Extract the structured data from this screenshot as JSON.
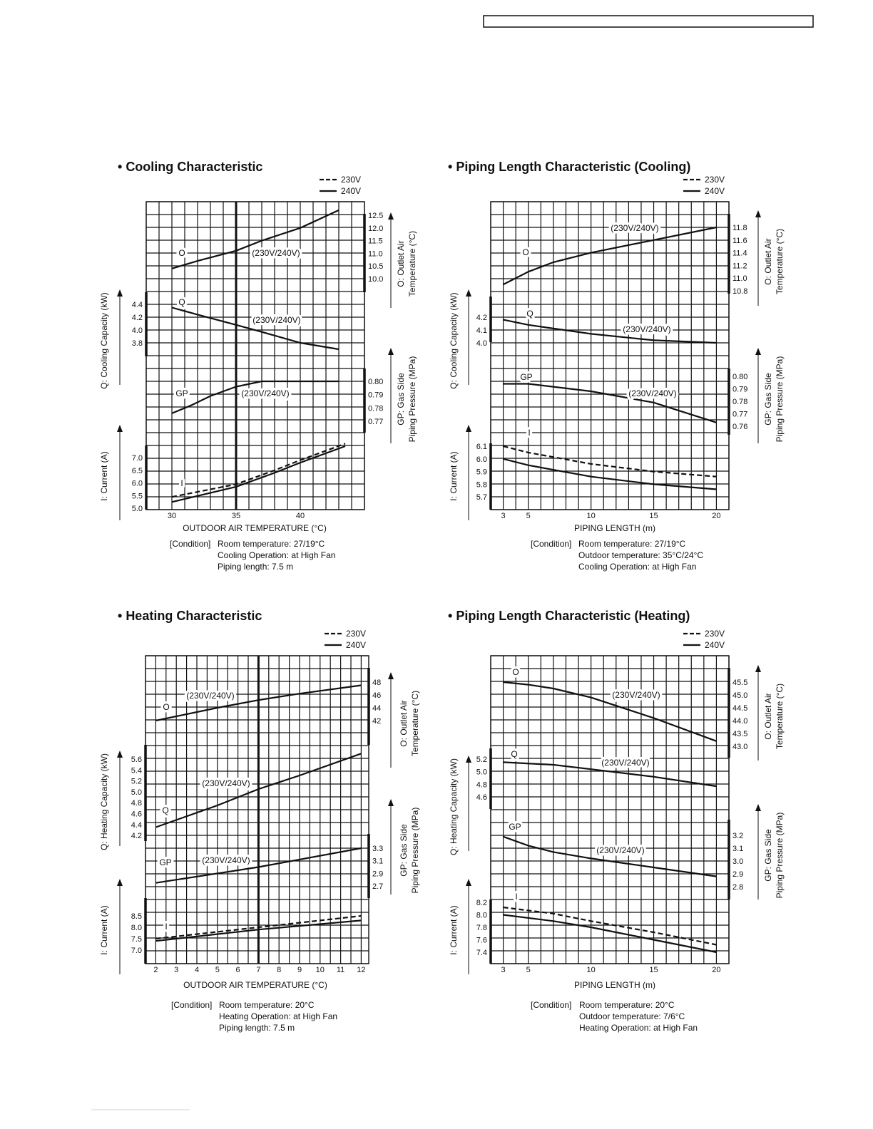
{
  "chart_data": [
    {
      "type": "line",
      "title": "Cooling Characteristic",
      "legend": [
        "230V",
        "240V"
      ],
      "xlabel": "OUTDOOR AIR TEMPERATURE (°C)",
      "xticks": [
        "30",
        "35",
        "40"
      ],
      "xlim": [
        28,
        45
      ],
      "reference_x": 35,
      "condition_label": "[Condition]",
      "conditions": [
        "Room temperature: 27/19°C",
        "Cooling Operation: at High Fan",
        "Piping length: 7.5 m"
      ],
      "panels": [
        {
          "letter": "O",
          "tag": "(230V/240V)",
          "side": "right",
          "axis_title": [
            "O: Outlet Air",
            "Temperature (°C)"
          ],
          "ticks": [
            "12.5",
            "12.0",
            "11.5",
            "11.0",
            "10.5",
            "10.0"
          ],
          "series": [
            {
              "name": "230V/240V",
              "style": "solid",
              "points": [
                [
                  30,
                  10.4
                ],
                [
                  32,
                  10.7
                ],
                [
                  35,
                  11.1
                ],
                [
                  37,
                  11.5
                ],
                [
                  40,
                  12.0
                ],
                [
                  43,
                  12.7
                ]
              ]
            }
          ]
        },
        {
          "letter": "Q",
          "tag": "(230V/240V)",
          "side": "left",
          "axis_title": [
            "Q: Cooling Capacity (kW)"
          ],
          "ticks": [
            "4.4",
            "4.2",
            "4.0",
            "3.8"
          ],
          "series": [
            {
              "name": "230V/240V",
              "style": "solid",
              "points": [
                [
                  30,
                  4.35
                ],
                [
                  32,
                  4.24
                ],
                [
                  35,
                  4.08
                ],
                [
                  37,
                  3.97
                ],
                [
                  40,
                  3.8
                ],
                [
                  43,
                  3.7
                ]
              ]
            }
          ]
        },
        {
          "letter": "GP",
          "tag": "(230V/240V)",
          "side": "right",
          "axis_title": [
            "GP: Gas Side",
            "Piping Pressure (MPa)"
          ],
          "ticks": [
            "0.80",
            "0.79",
            "0.78",
            "0.77"
          ],
          "series": [
            {
              "name": "230V/240V",
              "style": "solid",
              "points": [
                [
                  30,
                  0.776
                ],
                [
                  31.5,
                  0.782
                ],
                [
                  33,
                  0.789
                ],
                [
                  35,
                  0.796
                ],
                [
                  37,
                  0.8
                ],
                [
                  43,
                  0.8
                ]
              ]
            }
          ]
        },
        {
          "letter": "I",
          "tag": "",
          "side": "left",
          "axis_title": [
            "I: Current (A)"
          ],
          "ticks": [
            "7.0",
            "6.5",
            "6.0",
            "5.5",
            "5.0"
          ],
          "series": [
            {
              "name": "230V",
              "style": "dashed",
              "points": [
                [
                  30,
                  5.45
                ],
                [
                  35,
                  5.95
                ],
                [
                  38,
                  6.5
                ],
                [
                  40,
                  6.9
                ],
                [
                  43.5,
                  7.55
                ]
              ]
            },
            {
              "name": "240V",
              "style": "solid",
              "points": [
                [
                  30,
                  5.25
                ],
                [
                  35,
                  5.85
                ],
                [
                  38,
                  6.4
                ],
                [
                  40,
                  6.8
                ],
                [
                  43.5,
                  7.45
                ]
              ]
            }
          ]
        }
      ]
    },
    {
      "type": "line",
      "title": "Piping Length Characteristic (Cooling)",
      "legend": [
        "230V",
        "240V"
      ],
      "xlabel": "PIPING LENGTH (m)",
      "xticks": [
        "3",
        "5",
        "10",
        "15",
        "20"
      ],
      "xlim": [
        2,
        21
      ],
      "reference_x": null,
      "condition_label": "[Condition]",
      "conditions": [
        "Room temperature: 27/19°C",
        "Outdoor temperature: 35°C/24°C",
        "Cooling Operation: at High Fan"
      ],
      "panels": [
        {
          "letter": "O",
          "tag": "(230V/240V)",
          "side": "right",
          "axis_title": [
            "O: Outlet Air",
            "Temperature (°C)"
          ],
          "ticks": [
            "11.8",
            "11.6",
            "11.4",
            "11.2",
            "11.0",
            "10.8"
          ],
          "series": [
            {
              "name": "230V/240V",
              "style": "solid",
              "points": [
                [
                  3,
                  10.9
                ],
                [
                  5,
                  11.1
                ],
                [
                  7,
                  11.25
                ],
                [
                  10,
                  11.4
                ],
                [
                  15,
                  11.6
                ],
                [
                  20,
                  11.8
                ]
              ]
            }
          ]
        },
        {
          "letter": "Q",
          "tag": "(230V/240V)",
          "side": "left",
          "axis_title": [
            "Q: Cooling Capacity (kW)"
          ],
          "ticks": [
            "4.2",
            "4.1",
            "4.0"
          ],
          "series": [
            {
              "name": "230V/240V",
              "style": "solid",
              "points": [
                [
                  3,
                  4.18
                ],
                [
                  5,
                  4.14
                ],
                [
                  10,
                  4.07
                ],
                [
                  15,
                  4.02
                ],
                [
                  20,
                  4.0
                ]
              ]
            }
          ]
        },
        {
          "letter": "GP",
          "tag": "(230V/240V)",
          "side": "right",
          "axis_title": [
            "GP: Gas Side",
            "Piping Pressure (MPa)"
          ],
          "ticks": [
            "0.80",
            "0.79",
            "0.78",
            "0.77",
            "0.76"
          ],
          "series": [
            {
              "name": "230V/240V",
              "style": "solid",
              "points": [
                [
                  3,
                  0.794
                ],
                [
                  5,
                  0.794
                ],
                [
                  10,
                  0.788
                ],
                [
                  15,
                  0.779
                ],
                [
                  20,
                  0.763
                ]
              ]
            }
          ]
        },
        {
          "letter": "I",
          "tag": "",
          "side": "left",
          "axis_title": [
            "I: Current (A)"
          ],
          "ticks": [
            "6.1",
            "6.0",
            "5.9",
            "5.8",
            "5.7"
          ],
          "series": [
            {
              "name": "230V",
              "style": "dashed",
              "points": [
                [
                  3,
                  6.1
                ],
                [
                  5,
                  6.05
                ],
                [
                  10,
                  5.96
                ],
                [
                  15,
                  5.9
                ],
                [
                  20,
                  5.86
                ]
              ]
            },
            {
              "name": "240V",
              "style": "solid",
              "points": [
                [
                  3,
                  6.0
                ],
                [
                  5,
                  5.95
                ],
                [
                  10,
                  5.86
                ],
                [
                  15,
                  5.8
                ],
                [
                  20,
                  5.76
                ]
              ]
            }
          ]
        }
      ]
    },
    {
      "type": "line",
      "title": "Heating Characteristic",
      "legend": [
        "230V",
        "240V"
      ],
      "xlabel": "OUTDOOR AIR TEMPERATURE (°C)",
      "xticks": [
        "2",
        "3",
        "4",
        "5",
        "6",
        "7",
        "8",
        "9",
        "10",
        "11",
        "12"
      ],
      "xlim": [
        1.5,
        12.4
      ],
      "reference_x": 7,
      "condition_label": "[Condition]",
      "conditions": [
        "Room temperature: 20°C",
        "Heating Operation: at High Fan",
        "Piping length: 7.5 m"
      ],
      "panels": [
        {
          "letter": "O",
          "tag": "(230V/240V)",
          "side": "right",
          "axis_title": [
            "O: Outlet Air",
            "Temperature (°C)"
          ],
          "ticks": [
            "48",
            "46",
            "44",
            "42"
          ],
          "series": [
            {
              "name": "230V/240V",
              "style": "solid",
              "points": [
                [
                  2,
                  42
                ],
                [
                  5,
                  44
                ],
                [
                  7,
                  45.2
                ],
                [
                  9,
                  46.2
                ],
                [
                  12,
                  47.5
                ]
              ]
            }
          ]
        },
        {
          "letter": "Q",
          "tag": "(230V/240V)",
          "side": "left",
          "axis_title": [
            "Q: Heating Capacity (kW)"
          ],
          "ticks": [
            "5.6",
            "5.4",
            "5.2",
            "5.0",
            "4.8",
            "4.6",
            "4.4",
            "4.2"
          ],
          "series": [
            {
              "name": "230V/240V",
              "style": "solid",
              "points": [
                [
                  2,
                  4.35
                ],
                [
                  5,
                  4.75
                ],
                [
                  7,
                  5.05
                ],
                [
                  9,
                  5.3
                ],
                [
                  12,
                  5.7
                ]
              ]
            }
          ]
        },
        {
          "letter": "GP",
          "tag": "(230V/240V)",
          "side": "right",
          "axis_title": [
            "GP: Gas Side",
            "Piping Pressure (MPa)"
          ],
          "ticks": [
            "3.3",
            "3.1",
            "2.9",
            "2.7"
          ],
          "series": [
            {
              "name": "230V/240V",
              "style": "solid",
              "points": [
                [
                  2,
                  2.75
                ],
                [
                  5,
                  2.9
                ],
                [
                  7,
                  3.0
                ],
                [
                  9,
                  3.12
                ],
                [
                  12,
                  3.3
                ]
              ]
            }
          ]
        },
        {
          "letter": "I",
          "tag": "",
          "side": "left",
          "axis_title": [
            "I: Current (A)"
          ],
          "ticks": [
            "8.5",
            "8.0",
            "7.5",
            "7.0"
          ],
          "series": [
            {
              "name": "230V",
              "style": "dashed",
              "points": [
                [
                  2,
                  7.5
                ],
                [
                  7,
                  8.0
                ],
                [
                  12,
                  8.5
                ]
              ]
            },
            {
              "name": "240V",
              "style": "solid",
              "points": [
                [
                  2,
                  7.4
                ],
                [
                  7,
                  7.9
                ],
                [
                  12,
                  8.3
                ]
              ]
            }
          ]
        }
      ]
    },
    {
      "type": "line",
      "title": "Piping Length Characteristic (Heating)",
      "legend": [
        "230V",
        "240V"
      ],
      "xlabel": "PIPING LENGTH (m)",
      "xticks": [
        "3",
        "5",
        "10",
        "15",
        "20"
      ],
      "xlim": [
        2,
        21
      ],
      "reference_x": null,
      "condition_label": "[Condition]",
      "conditions": [
        "Room temperature: 20°C",
        "Outdoor temperature: 7/6°C",
        "Heating Operation: at High Fan"
      ],
      "panels": [
        {
          "letter": "O",
          "tag": "(230V/240V)",
          "side": "right",
          "axis_title": [
            "O: Outlet Air",
            "Temperature (°C)"
          ],
          "ticks": [
            "45.5",
            "45.0",
            "44.5",
            "44.0",
            "43.5",
            "43.0"
          ],
          "series": [
            {
              "name": "230V/240V",
              "style": "solid",
              "points": [
                [
                  3,
                  45.5
                ],
                [
                  5,
                  45.4
                ],
                [
                  7,
                  45.25
                ],
                [
                  10,
                  44.9
                ],
                [
                  15,
                  44.1
                ],
                [
                  20,
                  43.2
                ]
              ]
            }
          ]
        },
        {
          "letter": "Q",
          "tag": "(230V/240V)",
          "side": "left",
          "axis_title": [
            "Q: Heating Capacity (kW)"
          ],
          "ticks": [
            "5.2",
            "5.0",
            "4.8",
            "4.6"
          ],
          "series": [
            {
              "name": "230V/240V",
              "style": "solid",
              "points": [
                [
                  3,
                  5.15
                ],
                [
                  7,
                  5.11
                ],
                [
                  10,
                  5.04
                ],
                [
                  15,
                  4.92
                ],
                [
                  20,
                  4.77
                ]
              ]
            }
          ]
        },
        {
          "letter": "GP",
          "tag": "(230V/240V)",
          "side": "right",
          "axis_title": [
            "GP: Gas Side",
            "Piping Pressure (MPa)"
          ],
          "ticks": [
            "3.2",
            "3.1",
            "3.0",
            "2.9",
            "2.8"
          ],
          "series": [
            {
              "name": "230V/240V",
              "style": "solid",
              "points": [
                [
                  3,
                  3.19
                ],
                [
                  5,
                  3.12
                ],
                [
                  7,
                  3.07
                ],
                [
                  10,
                  3.02
                ],
                [
                  15,
                  2.95
                ],
                [
                  20,
                  2.88
                ]
              ]
            }
          ]
        },
        {
          "letter": "I",
          "tag": "",
          "side": "left",
          "axis_title": [
            "I: Current (A)"
          ],
          "ticks": [
            "8.2",
            "8.0",
            "7.8",
            "7.6",
            "7.4"
          ],
          "series": [
            {
              "name": "230V",
              "style": "dashed",
              "points": [
                [
                  3,
                  8.12
                ],
                [
                  7,
                  8.02
                ],
                [
                  10,
                  7.9
                ],
                [
                  15,
                  7.72
                ],
                [
                  20,
                  7.52
                ]
              ]
            },
            {
              "name": "240V",
              "style": "solid",
              "points": [
                [
                  3,
                  8.0
                ],
                [
                  7,
                  7.9
                ],
                [
                  10,
                  7.8
                ],
                [
                  15,
                  7.6
                ],
                [
                  20,
                  7.4
                ]
              ]
            }
          ]
        }
      ]
    }
  ]
}
